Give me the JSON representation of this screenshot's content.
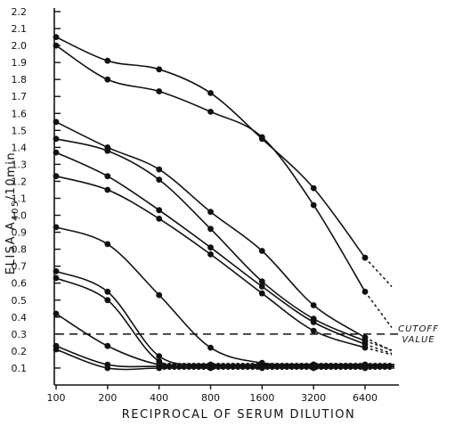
{
  "chart_data": {
    "type": "line",
    "title": "",
    "xlabel": "RECIPROCAL OF SERUM DILUTION",
    "ylabel_main": "ELISA A",
    "ylabel_sub": "405",
    "ylabel_tail": "/10min",
    "x_scale": "log2",
    "xlim": [
      100,
      6400
    ],
    "ylim": [
      0,
      2.2
    ],
    "x_ticks": [
      100,
      200,
      400,
      800,
      1600,
      3200,
      6400
    ],
    "x_tick_labels": [
      "100",
      "200",
      "400",
      "800",
      "1600",
      "3200",
      "6400"
    ],
    "y_ticks": [
      0.1,
      0.2,
      0.3,
      0.4,
      0.5,
      0.6,
      0.7,
      0.8,
      0.9,
      1.0,
      1.1,
      1.2,
      1.3,
      1.4,
      1.5,
      1.6,
      1.7,
      1.8,
      1.9,
      2.0,
      2.1,
      2.2
    ],
    "y_tick_labels": [
      "0.1",
      "0.2",
      "0.3",
      "0.4",
      "0.5",
      "0.6",
      "0.7",
      "0.8",
      "0.9",
      "1.0",
      "1.1",
      "1.2",
      "1.3",
      "1.4",
      "1.5",
      "1.6",
      "1.7",
      "1.8",
      "1.9",
      "2.0",
      "2.1",
      "2.2"
    ],
    "grid": false,
    "cutoff": {
      "value": 0.3,
      "label_line1": "CUTOFF",
      "label_line2": "VALUE"
    },
    "series": [
      {
        "x": [
          100,
          200,
          400,
          800,
          1600,
          3200,
          6400
        ],
        "y": [
          2.05,
          1.91,
          1.86,
          1.72,
          1.45,
          1.16,
          0.75
        ]
      },
      {
        "x": [
          100,
          200,
          400,
          800,
          1600,
          3200,
          6400
        ],
        "y": [
          2.0,
          1.8,
          1.73,
          1.61,
          1.46,
          1.06,
          0.55
        ]
      },
      {
        "x": [
          100,
          200,
          400,
          800,
          1600,
          3200,
          6400
        ],
        "y": [
          1.55,
          1.4,
          1.27,
          1.02,
          0.79,
          0.47,
          0.28
        ]
      },
      {
        "x": [
          100,
          200,
          400,
          800,
          1600,
          3200,
          6400
        ],
        "y": [
          1.45,
          1.38,
          1.21,
          0.92,
          0.61,
          0.39,
          0.26
        ]
      },
      {
        "x": [
          100,
          200,
          400,
          800,
          1600,
          3200,
          6400
        ],
        "y": [
          1.37,
          1.23,
          1.03,
          0.81,
          0.58,
          0.37,
          0.24
        ]
      },
      {
        "x": [
          100,
          200,
          400,
          800,
          1600,
          3200,
          6400
        ],
        "y": [
          1.23,
          1.15,
          0.98,
          0.77,
          0.54,
          0.32,
          0.22
        ]
      },
      {
        "x": [
          100,
          200,
          400,
          800,
          1600,
          3200,
          6400
        ],
        "y": [
          0.93,
          0.83,
          0.53,
          0.22,
          0.13,
          0.12,
          0.12
        ]
      },
      {
        "x": [
          100,
          200,
          400,
          800,
          1600,
          3200,
          6400
        ],
        "y": [
          0.67,
          0.55,
          0.17,
          0.12,
          0.12,
          0.12,
          0.12
        ]
      },
      {
        "x": [
          100,
          200,
          400,
          800,
          1600,
          3200,
          6400
        ],
        "y": [
          0.63,
          0.5,
          0.14,
          0.12,
          0.12,
          0.12,
          0.12
        ]
      },
      {
        "x": [
          100,
          200,
          400,
          800,
          1600,
          3200,
          6400
        ],
        "y": [
          0.42,
          0.23,
          0.12,
          0.11,
          0.11,
          0.11,
          0.11
        ]
      },
      {
        "x": [
          100,
          200,
          400,
          800,
          1600,
          3200,
          6400
        ],
        "y": [
          0.23,
          0.12,
          0.11,
          0.11,
          0.11,
          0.11,
          0.11
        ]
      },
      {
        "x": [
          100,
          200,
          400,
          800,
          1600,
          3200,
          6400
        ],
        "y": [
          0.21,
          0.1,
          0.1,
          0.1,
          0.1,
          0.1,
          0.1
        ]
      }
    ]
  }
}
